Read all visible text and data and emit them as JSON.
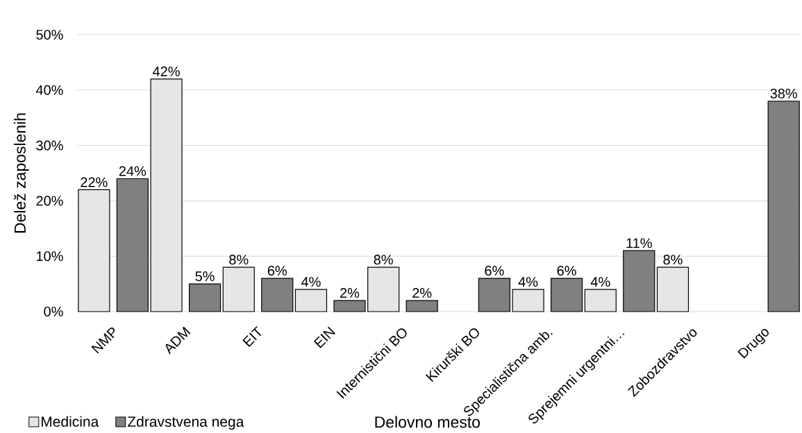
{
  "chart_data": {
    "type": "bar",
    "xlabel": "Delovno mesto",
    "ylabel": "Delež zaposlenih",
    "categories": [
      "NMP",
      "ADM",
      "EIT",
      "EIN",
      "Internistični BO",
      "Kirurški BO",
      "Specialistična amb.",
      "Sprejemni urgentni…",
      "Zobozdravstvo",
      "Drugo"
    ],
    "series": [
      {
        "name": "Medicina",
        "color": "#e6e6e6",
        "values": [
          22,
          42,
          8,
          4,
          8,
          null,
          4,
          4,
          8,
          null
        ],
        "value_labels": [
          "22%",
          "42%",
          "8%",
          "4%",
          "8%",
          null,
          "4%",
          "4%",
          "8%",
          null
        ]
      },
      {
        "name": "Zdravstvena nega",
        "color": "#808080",
        "values": [
          24,
          5,
          6,
          2,
          2,
          6,
          6,
          11,
          null,
          38
        ],
        "value_labels": [
          "24%",
          "5%",
          "6%",
          "2%",
          "2%",
          "6%",
          "6%",
          "11%",
          null,
          "38%"
        ]
      }
    ],
    "ylim": [
      0,
      50
    ],
    "yticks": [
      {
        "value": 0,
        "label": "0%"
      },
      {
        "value": 10,
        "label": "10%"
      },
      {
        "value": 20,
        "label": "20%"
      },
      {
        "value": 30,
        "label": "30%"
      },
      {
        "value": 40,
        "label": "40%"
      },
      {
        "value": 50,
        "label": "50%"
      }
    ],
    "grid": "y",
    "legend": "bottom left"
  }
}
